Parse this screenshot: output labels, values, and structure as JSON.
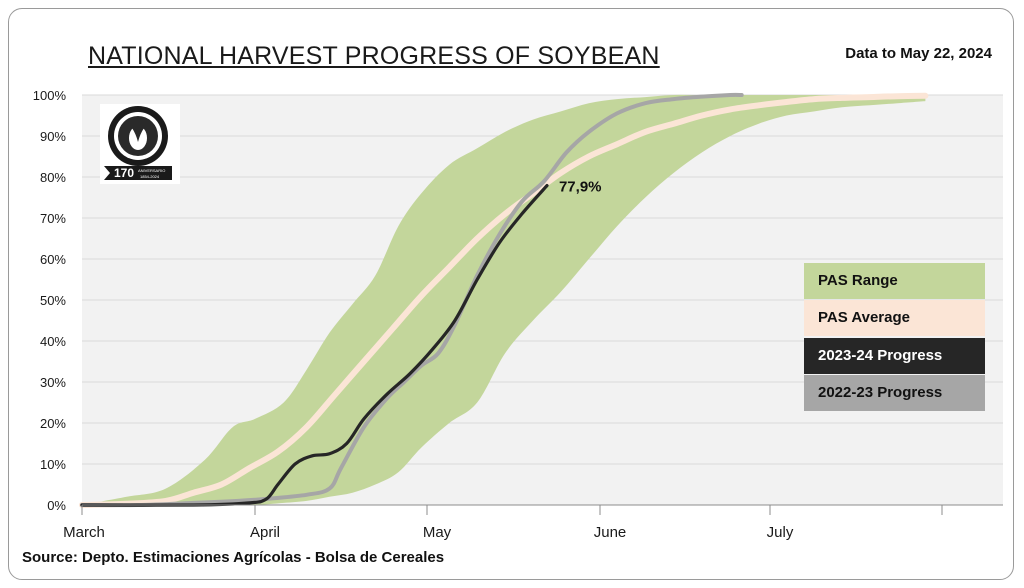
{
  "header": {
    "title": "NATIONAL HARVEST PROGRESS OF SOYBEAN",
    "date_note": "Data to May 22, 2024"
  },
  "footer": {
    "source": "Source: Depto. Estimaciones Agrícolas - Bolsa de Cereales"
  },
  "logo": {
    "name": "Bolsa de Cereales",
    "years": "170",
    "tagline": "ANIVERSARIO",
    "span": "1854-2024"
  },
  "legend": [
    {
      "label": "PAS Range",
      "color": "#c3d69b",
      "text_color": "#111111"
    },
    {
      "label": "PAS Average",
      "color": "#fbe5d6",
      "text_color": "#111111"
    },
    {
      "label": "2023-24 Progress",
      "color": "#262626",
      "text_color": "#ffffff"
    },
    {
      "label": "2022-23 Progress",
      "color": "#a6a6a6",
      "text_color": "#111111"
    }
  ],
  "annotation": {
    "label": "77,9%"
  },
  "chart_data": {
    "type": "area",
    "title": "NATIONAL HARVEST PROGRESS OF SOYBEAN",
    "xlabel": "",
    "ylabel": "",
    "x_ticks": [
      "March",
      "April",
      "May",
      "June",
      "July"
    ],
    "y_ticks": [
      "0%",
      "10%",
      "20%",
      "30%",
      "40%",
      "50%",
      "60%",
      "70%",
      "80%",
      "90%",
      "100%"
    ],
    "ylim": [
      0,
      100
    ],
    "x_unit": "days from March 1",
    "xlim": [
      0,
      153
    ],
    "grid": "horizontal",
    "legend_position": "right",
    "series": [
      {
        "name": "PAS Range",
        "kind": "band",
        "color": "#c3d69b",
        "x": [
          0,
          8,
          15,
          22,
          27,
          31,
          36,
          40,
          44,
          48,
          52,
          56,
          60,
          65,
          70,
          75,
          80,
          85,
          90,
          95,
          100,
          105,
          110,
          115,
          120,
          125,
          130,
          135,
          140,
          145,
          150
        ],
        "upper": [
          0,
          2,
          4,
          11,
          19,
          21,
          25,
          33,
          42,
          49,
          56,
          68,
          76,
          83,
          87,
          91,
          94,
          96,
          98,
          99,
          99.5,
          100,
          100,
          100,
          100,
          100,
          100,
          100,
          100,
          100,
          100
        ],
        "lower": [
          0,
          0,
          0,
          0,
          0,
          0,
          0.5,
          1,
          2,
          3,
          5,
          8,
          14,
          20,
          25,
          37,
          45,
          52,
          60,
          68,
          75,
          81,
          86,
          90,
          93,
          95,
          96,
          97,
          97.5,
          98,
          98.5
        ]
      },
      {
        "name": "PAS Average",
        "kind": "line",
        "color": "#fbe5d6",
        "x": [
          0,
          8,
          15,
          20,
          25,
          30,
          35,
          40,
          45,
          50,
          55,
          60,
          65,
          70,
          75,
          80,
          85,
          90,
          95,
          100,
          105,
          110,
          115,
          120,
          125,
          130,
          135,
          140,
          145,
          150
        ],
        "values": [
          0,
          0.3,
          1,
          3,
          5,
          9,
          13,
          19,
          27,
          35,
          43,
          51,
          58,
          65,
          71,
          76,
          81,
          85,
          88,
          91,
          93,
          95,
          96.5,
          97.5,
          98.3,
          99,
          99.3,
          99.5,
          99.7,
          99.8
        ]
      },
      {
        "name": "2022-23 Progress",
        "kind": "line",
        "color": "#a6a6a6",
        "x": [
          0,
          10,
          20,
          28,
          33,
          40,
          44,
          46,
          50,
          54,
          57,
          60,
          63,
          66,
          70,
          74,
          78,
          82,
          86,
          90,
          95,
          100,
          105,
          110,
          115,
          117
        ],
        "values": [
          0,
          0,
          0.5,
          1,
          1.5,
          2.5,
          4,
          9,
          19,
          26,
          30,
          34,
          37,
          44,
          56,
          66,
          74,
          79,
          86,
          91,
          95.5,
          98,
          99,
          99.6,
          100,
          100
        ]
      },
      {
        "name": "2023-24 Progress",
        "kind": "line",
        "color": "#262626",
        "x": [
          0,
          20,
          30,
          33,
          35,
          38,
          41,
          44,
          47,
          50,
          54,
          58,
          62,
          66,
          70,
          74,
          78,
          82.5
        ],
        "values": [
          0,
          0,
          0.5,
          1.5,
          5,
          10,
          12,
          12.5,
          15,
          21,
          27,
          32,
          38,
          45,
          55,
          64,
          71,
          77.9
        ]
      }
    ]
  }
}
